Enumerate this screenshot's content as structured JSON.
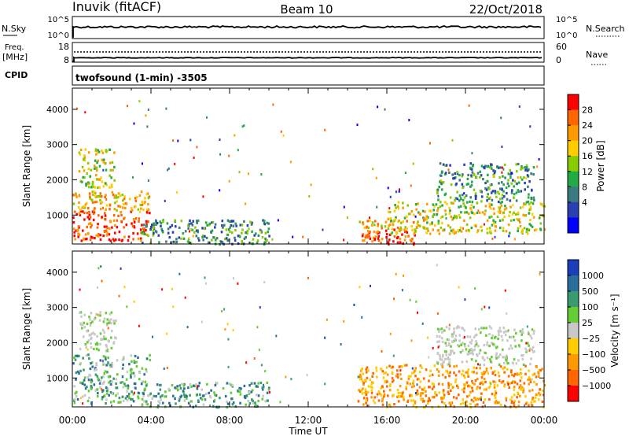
{
  "header": {
    "station": "Inuvik (fitACF)",
    "beam": "Beam 10",
    "date": "22/Oct/2018"
  },
  "params": {
    "nsky_label": "N.Sky",
    "nsky_ticks": [
      "10^5",
      "10^0"
    ],
    "nsearch_label": "N.Search",
    "nsearch_ticks": [
      "10^5",
      "10^0"
    ],
    "freq_label_1": "Freq.",
    "freq_label_2": "[MHz]",
    "freq_ticks": [
      "18",
      "8"
    ],
    "nave_label": "Nave",
    "nave_ticks": [
      "60",
      "0"
    ],
    "cpid_label": "CPID",
    "cpid_text": "twofsound (1-min) -3505"
  },
  "chart_data": [
    {
      "type": "heatmap",
      "name": "power",
      "xlabel": "Time UT",
      "ylabel": "Slant Range [km]",
      "ylim": [
        180,
        4600
      ],
      "xlim_hours": [
        0,
        24
      ],
      "yticks": [
        "4000",
        "3000",
        "2000",
        "1000"
      ],
      "xticks": [
        "00:00",
        "04:00",
        "08:00",
        "12:00",
        "16:00",
        "20:00",
        "00:00"
      ],
      "colorbar_label": "Power [dB]",
      "colorbar_ticks": [
        "28",
        "24",
        "20",
        "16",
        "12",
        "8",
        "4"
      ],
      "colors": [
        "#ff0000",
        "#ff6600",
        "#ff9900",
        "#ffcc00",
        "#88cc00",
        "#22aa44",
        "#3a7a80",
        "#2a3fb0",
        "#0000ff"
      ],
      "echo_regions": [
        {
          "t": [
            0.0,
            3.9
          ],
          "r": [
            300,
            1700
          ],
          "level": "strong"
        },
        {
          "t": [
            0.3,
            2.2
          ],
          "r": [
            1800,
            2900
          ],
          "level": "medium"
        },
        {
          "t": [
            3.5,
            10.0
          ],
          "r": [
            200,
            900
          ],
          "level": "weak"
        },
        {
          "t": [
            14.5,
            17.5
          ],
          "r": [
            200,
            900
          ],
          "level": "strong"
        },
        {
          "t": [
            16.0,
            24.0
          ],
          "r": [
            500,
            1400
          ],
          "level": "medium"
        },
        {
          "t": [
            18.5,
            23.5
          ],
          "r": [
            1400,
            2500
          ],
          "level": "weak"
        }
      ]
    },
    {
      "type": "heatmap",
      "name": "velocity",
      "xlabel": "Time UT",
      "ylabel": "Slant Range [km]",
      "ylim": [
        180,
        4600
      ],
      "xlim_hours": [
        0,
        24
      ],
      "yticks": [
        "4000",
        "3000",
        "2000",
        "1000"
      ],
      "xticks": [
        "00:00",
        "04:00",
        "08:00",
        "12:00",
        "16:00",
        "20:00",
        "00:00"
      ],
      "colorbar_label": "Velocity [m s⁻¹]",
      "colorbar_ticks": [
        "1000",
        "500",
        "100",
        "25",
        "−25",
        "−100",
        "−500",
        "−1000"
      ],
      "colors": [
        "#1a3fb8",
        "#2a6f9a",
        "#3a9a70",
        "#66cc33",
        "#c8c8c8",
        "#ffcc00",
        "#ff9900",
        "#ff6600",
        "#ff0000"
      ],
      "echo_regions": [
        {
          "t": [
            0.0,
            3.9
          ],
          "r": [
            300,
            1700
          ],
          "level": "mixed-green"
        },
        {
          "t": [
            0.3,
            2.2
          ],
          "r": [
            1800,
            2900
          ],
          "level": "grey"
        },
        {
          "t": [
            3.5,
            10.0
          ],
          "r": [
            200,
            900
          ],
          "level": "mixed-green"
        },
        {
          "t": [
            14.5,
            24.0
          ],
          "r": [
            200,
            1400
          ],
          "level": "orange"
        },
        {
          "t": [
            18.5,
            23.5
          ],
          "r": [
            1400,
            2500
          ],
          "level": "grey"
        }
      ]
    }
  ]
}
